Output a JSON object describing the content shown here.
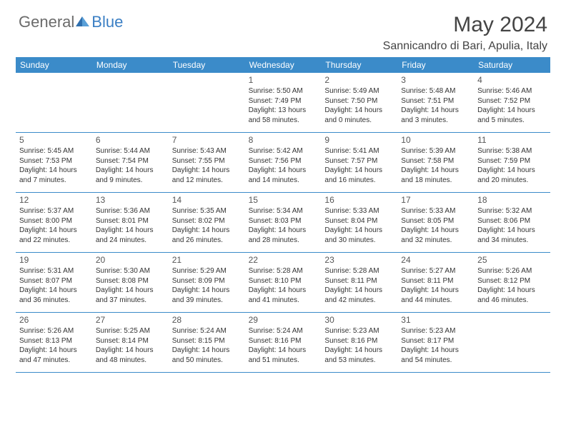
{
  "logo": {
    "text_general": "General",
    "text_blue": "Blue",
    "icon_color": "#2f6fae"
  },
  "header": {
    "month_title": "May 2024",
    "location": "Sannicandro di Bari, Apulia, Italy"
  },
  "colors": {
    "header_bar": "#3b8bc9",
    "text_gray": "#6b6b6b",
    "text_dark": "#444444",
    "body_text": "#333333"
  },
  "weekdays": [
    "Sunday",
    "Monday",
    "Tuesday",
    "Wednesday",
    "Thursday",
    "Friday",
    "Saturday"
  ],
  "weeks": [
    [
      {
        "n": "",
        "sunrise": "",
        "sunset": "",
        "daylight": ""
      },
      {
        "n": "",
        "sunrise": "",
        "sunset": "",
        "daylight": ""
      },
      {
        "n": "",
        "sunrise": "",
        "sunset": "",
        "daylight": ""
      },
      {
        "n": "1",
        "sunrise": "Sunrise: 5:50 AM",
        "sunset": "Sunset: 7:49 PM",
        "daylight": "Daylight: 13 hours and 58 minutes."
      },
      {
        "n": "2",
        "sunrise": "Sunrise: 5:49 AM",
        "sunset": "Sunset: 7:50 PM",
        "daylight": "Daylight: 14 hours and 0 minutes."
      },
      {
        "n": "3",
        "sunrise": "Sunrise: 5:48 AM",
        "sunset": "Sunset: 7:51 PM",
        "daylight": "Daylight: 14 hours and 3 minutes."
      },
      {
        "n": "4",
        "sunrise": "Sunrise: 5:46 AM",
        "sunset": "Sunset: 7:52 PM",
        "daylight": "Daylight: 14 hours and 5 minutes."
      }
    ],
    [
      {
        "n": "5",
        "sunrise": "Sunrise: 5:45 AM",
        "sunset": "Sunset: 7:53 PM",
        "daylight": "Daylight: 14 hours and 7 minutes."
      },
      {
        "n": "6",
        "sunrise": "Sunrise: 5:44 AM",
        "sunset": "Sunset: 7:54 PM",
        "daylight": "Daylight: 14 hours and 9 minutes."
      },
      {
        "n": "7",
        "sunrise": "Sunrise: 5:43 AM",
        "sunset": "Sunset: 7:55 PM",
        "daylight": "Daylight: 14 hours and 12 minutes."
      },
      {
        "n": "8",
        "sunrise": "Sunrise: 5:42 AM",
        "sunset": "Sunset: 7:56 PM",
        "daylight": "Daylight: 14 hours and 14 minutes."
      },
      {
        "n": "9",
        "sunrise": "Sunrise: 5:41 AM",
        "sunset": "Sunset: 7:57 PM",
        "daylight": "Daylight: 14 hours and 16 minutes."
      },
      {
        "n": "10",
        "sunrise": "Sunrise: 5:39 AM",
        "sunset": "Sunset: 7:58 PM",
        "daylight": "Daylight: 14 hours and 18 minutes."
      },
      {
        "n": "11",
        "sunrise": "Sunrise: 5:38 AM",
        "sunset": "Sunset: 7:59 PM",
        "daylight": "Daylight: 14 hours and 20 minutes."
      }
    ],
    [
      {
        "n": "12",
        "sunrise": "Sunrise: 5:37 AM",
        "sunset": "Sunset: 8:00 PM",
        "daylight": "Daylight: 14 hours and 22 minutes."
      },
      {
        "n": "13",
        "sunrise": "Sunrise: 5:36 AM",
        "sunset": "Sunset: 8:01 PM",
        "daylight": "Daylight: 14 hours and 24 minutes."
      },
      {
        "n": "14",
        "sunrise": "Sunrise: 5:35 AM",
        "sunset": "Sunset: 8:02 PM",
        "daylight": "Daylight: 14 hours and 26 minutes."
      },
      {
        "n": "15",
        "sunrise": "Sunrise: 5:34 AM",
        "sunset": "Sunset: 8:03 PM",
        "daylight": "Daylight: 14 hours and 28 minutes."
      },
      {
        "n": "16",
        "sunrise": "Sunrise: 5:33 AM",
        "sunset": "Sunset: 8:04 PM",
        "daylight": "Daylight: 14 hours and 30 minutes."
      },
      {
        "n": "17",
        "sunrise": "Sunrise: 5:33 AM",
        "sunset": "Sunset: 8:05 PM",
        "daylight": "Daylight: 14 hours and 32 minutes."
      },
      {
        "n": "18",
        "sunrise": "Sunrise: 5:32 AM",
        "sunset": "Sunset: 8:06 PM",
        "daylight": "Daylight: 14 hours and 34 minutes."
      }
    ],
    [
      {
        "n": "19",
        "sunrise": "Sunrise: 5:31 AM",
        "sunset": "Sunset: 8:07 PM",
        "daylight": "Daylight: 14 hours and 36 minutes."
      },
      {
        "n": "20",
        "sunrise": "Sunrise: 5:30 AM",
        "sunset": "Sunset: 8:08 PM",
        "daylight": "Daylight: 14 hours and 37 minutes."
      },
      {
        "n": "21",
        "sunrise": "Sunrise: 5:29 AM",
        "sunset": "Sunset: 8:09 PM",
        "daylight": "Daylight: 14 hours and 39 minutes."
      },
      {
        "n": "22",
        "sunrise": "Sunrise: 5:28 AM",
        "sunset": "Sunset: 8:10 PM",
        "daylight": "Daylight: 14 hours and 41 minutes."
      },
      {
        "n": "23",
        "sunrise": "Sunrise: 5:28 AM",
        "sunset": "Sunset: 8:11 PM",
        "daylight": "Daylight: 14 hours and 42 minutes."
      },
      {
        "n": "24",
        "sunrise": "Sunrise: 5:27 AM",
        "sunset": "Sunset: 8:11 PM",
        "daylight": "Daylight: 14 hours and 44 minutes."
      },
      {
        "n": "25",
        "sunrise": "Sunrise: 5:26 AM",
        "sunset": "Sunset: 8:12 PM",
        "daylight": "Daylight: 14 hours and 46 minutes."
      }
    ],
    [
      {
        "n": "26",
        "sunrise": "Sunrise: 5:26 AM",
        "sunset": "Sunset: 8:13 PM",
        "daylight": "Daylight: 14 hours and 47 minutes."
      },
      {
        "n": "27",
        "sunrise": "Sunrise: 5:25 AM",
        "sunset": "Sunset: 8:14 PM",
        "daylight": "Daylight: 14 hours and 48 minutes."
      },
      {
        "n": "28",
        "sunrise": "Sunrise: 5:24 AM",
        "sunset": "Sunset: 8:15 PM",
        "daylight": "Daylight: 14 hours and 50 minutes."
      },
      {
        "n": "29",
        "sunrise": "Sunrise: 5:24 AM",
        "sunset": "Sunset: 8:16 PM",
        "daylight": "Daylight: 14 hours and 51 minutes."
      },
      {
        "n": "30",
        "sunrise": "Sunrise: 5:23 AM",
        "sunset": "Sunset: 8:16 PM",
        "daylight": "Daylight: 14 hours and 53 minutes."
      },
      {
        "n": "31",
        "sunrise": "Sunrise: 5:23 AM",
        "sunset": "Sunset: 8:17 PM",
        "daylight": "Daylight: 14 hours and 54 minutes."
      },
      {
        "n": "",
        "sunrise": "",
        "sunset": "",
        "daylight": ""
      }
    ]
  ]
}
